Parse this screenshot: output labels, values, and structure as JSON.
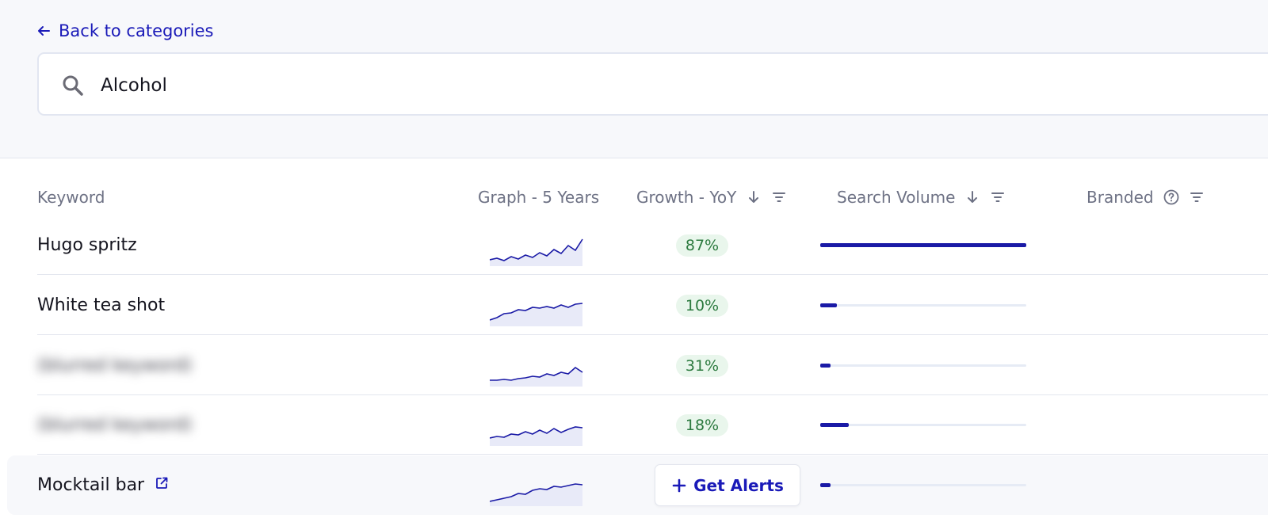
{
  "nav": {
    "back_label": "Back to categories"
  },
  "search": {
    "value": "Alcohol",
    "icon": "search-icon"
  },
  "columns": {
    "keyword": "Keyword",
    "graph": "Graph - 5 Years",
    "growth": "Growth - YoY",
    "volume": "Search Volume",
    "branded": "Branded"
  },
  "rows": [
    {
      "keyword": "Hugo spritz",
      "blurred": false,
      "external_link": false,
      "growth": "87%",
      "volume_level": 1.0,
      "trend": [
        30,
        28,
        31,
        26,
        29,
        24,
        27,
        21,
        25,
        17,
        22,
        12,
        18,
        4
      ]
    },
    {
      "keyword": "White tea shot",
      "blurred": false,
      "external_link": false,
      "growth": "10%",
      "volume_level": 0.08,
      "trend": [
        30,
        27,
        22,
        21,
        17,
        18,
        14,
        15,
        13,
        15,
        11,
        14,
        10,
        9
      ]
    },
    {
      "keyword": "(blurred keyword)",
      "blurred": true,
      "external_link": false,
      "growth": "31%",
      "volume_level": 0.05,
      "trend": [
        30,
        30,
        29,
        30,
        28,
        27,
        25,
        26,
        22,
        24,
        20,
        22,
        14,
        20
      ]
    },
    {
      "keyword": "(blurred keyword)",
      "blurred": true,
      "external_link": false,
      "growth": "18%",
      "volume_level": 0.14,
      "trend": [
        28,
        26,
        27,
        23,
        24,
        20,
        23,
        18,
        22,
        16,
        21,
        17,
        14,
        15
      ]
    },
    {
      "keyword": "Mocktail bar",
      "blurred": false,
      "external_link": true,
      "growth": null,
      "volume_level": 0.05,
      "trend": [
        32,
        30,
        28,
        26,
        22,
        23,
        18,
        16,
        17,
        13,
        14,
        12,
        10,
        11
      ]
    }
  ],
  "alerts_button": {
    "label": "Get Alerts"
  },
  "colors": {
    "accent": "#1a1ab8",
    "growth_bg": "#e9f6ec",
    "growth_text": "#2c7a3f",
    "spark_line": "#1a1aa6"
  }
}
